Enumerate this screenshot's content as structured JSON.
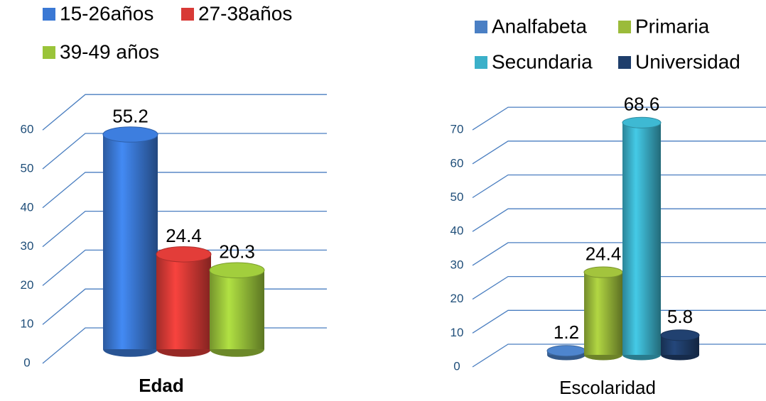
{
  "chart_data": [
    {
      "type": "bar",
      "categories": [
        "Edad"
      ],
      "series": [
        {
          "name": "15-26años",
          "color": "#3a78d4",
          "values": [
            55.2
          ]
        },
        {
          "name": "27-38años",
          "color": "#d83a36",
          "values": [
            24.4
          ]
        },
        {
          "name": "39-49 años",
          "color": "#9ac43a",
          "values": [
            20.3
          ]
        }
      ],
      "ylim": [
        0,
        60
      ],
      "yticks": [
        0,
        10,
        20,
        30,
        40,
        50,
        60
      ],
      "grid": true
    },
    {
      "type": "bar",
      "categories": [
        "Escolaridad"
      ],
      "series": [
        {
          "name": "Analfabeta",
          "color": "#4a7fc4",
          "values": [
            1.2
          ]
        },
        {
          "name": "Primaria",
          "color": "#9bbb3a",
          "values": [
            24.4
          ]
        },
        {
          "name": "Secundaria",
          "color": "#3bb0c9",
          "values": [
            68.6
          ]
        },
        {
          "name": "Universidad",
          "color": "#1f3e6b",
          "values": [
            5.8
          ]
        }
      ],
      "ylim": [
        0,
        70
      ],
      "yticks": [
        0,
        10,
        20,
        30,
        40,
        50,
        60,
        70
      ],
      "grid": true
    }
  ]
}
